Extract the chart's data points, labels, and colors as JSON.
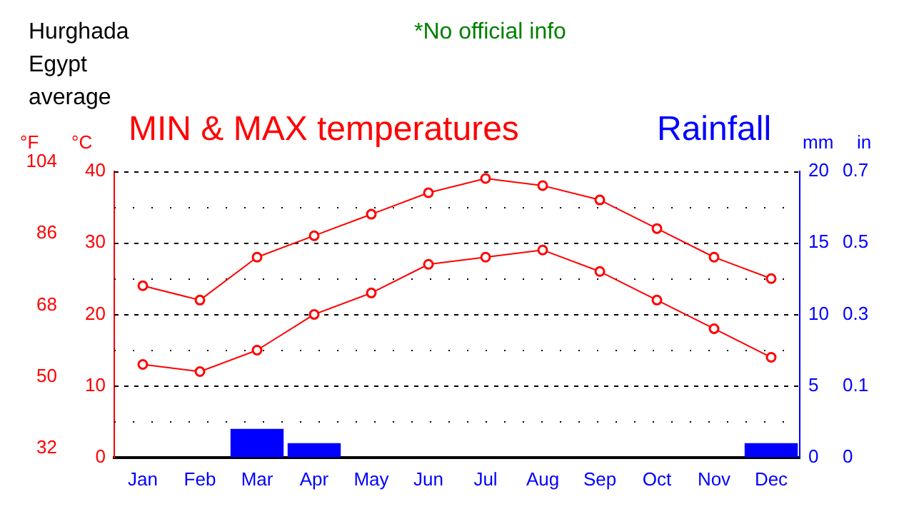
{
  "chart_data": {
    "type": "line",
    "title": "MIN & MAX temperatures",
    "subtitle": "Rainfall",
    "annotations": [
      "Hurghada",
      "Egypt",
      "average",
      "*No official info",
      "in",
      "0",
      "0.1",
      "0.3",
      "0.5",
      "0.7"
    ],
    "categories": [
      "Jan",
      "Feb",
      "Mar",
      "Apr",
      "May",
      "Jun",
      "Jul",
      "Aug",
      "Sep",
      "Oct",
      "Nov",
      "Dec"
    ],
    "series": [
      {
        "color": "#ff0000",
        "values": [
          24,
          22,
          28,
          31,
          34,
          37,
          39,
          38,
          36,
          32,
          28,
          25
        ]
      },
      {
        "color": "#ff0000",
        "values": [
          13,
          12,
          15,
          20,
          23,
          27,
          28,
          29,
          26,
          22,
          18,
          14
        ]
      },
      {
        "type": "bar",
        "color": "#0000ff",
        "axis": "y2",
        "values": [
          0,
          0,
          2,
          1,
          0,
          0,
          0,
          0,
          0,
          0,
          0,
          1
        ]
      }
    ],
    "ylabel": "°C",
    "y3label": "°F",
    "y2label": "mm",
    "ylim": [
      0,
      40
    ],
    "yticks": [
      0,
      {
        "value": 5,
        "label": null
      },
      10,
      {
        "value": 15,
        "label": null
      },
      20,
      {
        "value": 25,
        "label": null
      },
      30,
      {
        "value": 35,
        "label": null
      },
      40
    ],
    "y3lim": [
      32,
      104
    ],
    "y3ticks": [
      32,
      50,
      68,
      86,
      104
    ],
    "y2lim": [
      0,
      20
    ],
    "y2ticks": [
      0,
      5,
      10,
      15,
      20
    ],
    "grid": "y",
    "legend": false,
    "marker": "circle",
    "line_style": "solid"
  }
}
